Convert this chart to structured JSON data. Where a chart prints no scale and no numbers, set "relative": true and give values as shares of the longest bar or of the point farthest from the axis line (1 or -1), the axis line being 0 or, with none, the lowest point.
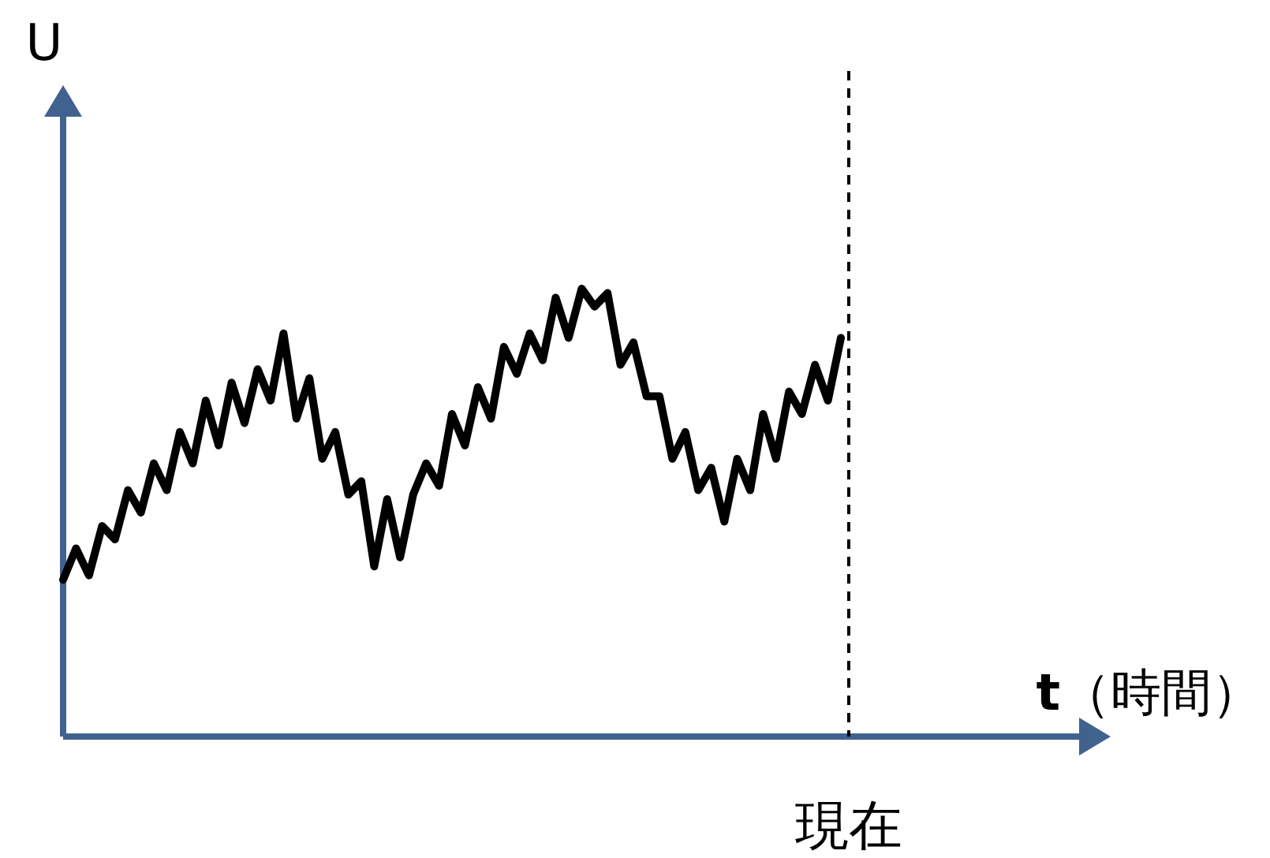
{
  "chart_data": {
    "type": "line",
    "relative": true,
    "xlabel": "**t**（時間）",
    "ylabel": "U",
    "line_style": "solid",
    "categories": [
      null,
      null,
      null,
      null,
      null,
      null,
      null,
      null,
      null,
      null,
      null,
      null,
      null,
      null,
      null,
      null,
      null,
      null,
      null,
      null,
      null,
      null,
      null,
      null,
      null,
      null,
      null,
      null,
      null,
      null,
      null,
      null,
      null,
      null,
      null,
      null,
      null,
      null,
      null,
      null,
      null,
      null,
      null,
      null,
      null,
      null,
      null,
      null,
      null,
      null,
      null,
      null,
      null,
      null,
      null,
      null,
      null,
      null,
      null,
      null,
      null
    ],
    "series": [
      {
        "color": "#000000",
        "values": [
          0.35,
          0.42,
          0.36,
          0.47,
          0.44,
          0.55,
          0.5,
          0.61,
          0.55,
          0.68,
          0.61,
          0.75,
          0.65,
          0.79,
          0.7,
          0.82,
          0.75,
          0.9,
          0.71,
          0.8,
          0.62,
          0.68,
          0.54,
          0.57,
          0.38,
          0.53,
          0.4,
          0.54,
          0.61,
          0.56,
          0.72,
          0.65,
          0.78,
          0.71,
          0.87,
          0.81,
          0.9,
          0.84,
          0.98,
          0.89,
          1.0,
          0.96,
          0.99,
          0.83,
          0.88,
          0.76,
          0.76,
          0.62,
          0.68,
          0.55,
          0.6,
          0.48,
          0.62,
          0.55,
          0.72,
          0.62,
          0.77,
          0.72,
          0.83,
          0.75,
          0.89
        ]
      }
    ],
    "ref_lines": [
      {
        "axis": "x",
        "label": "現在",
        "line_style": "dashed",
        "color": "#000000"
      }
    ]
  }
}
